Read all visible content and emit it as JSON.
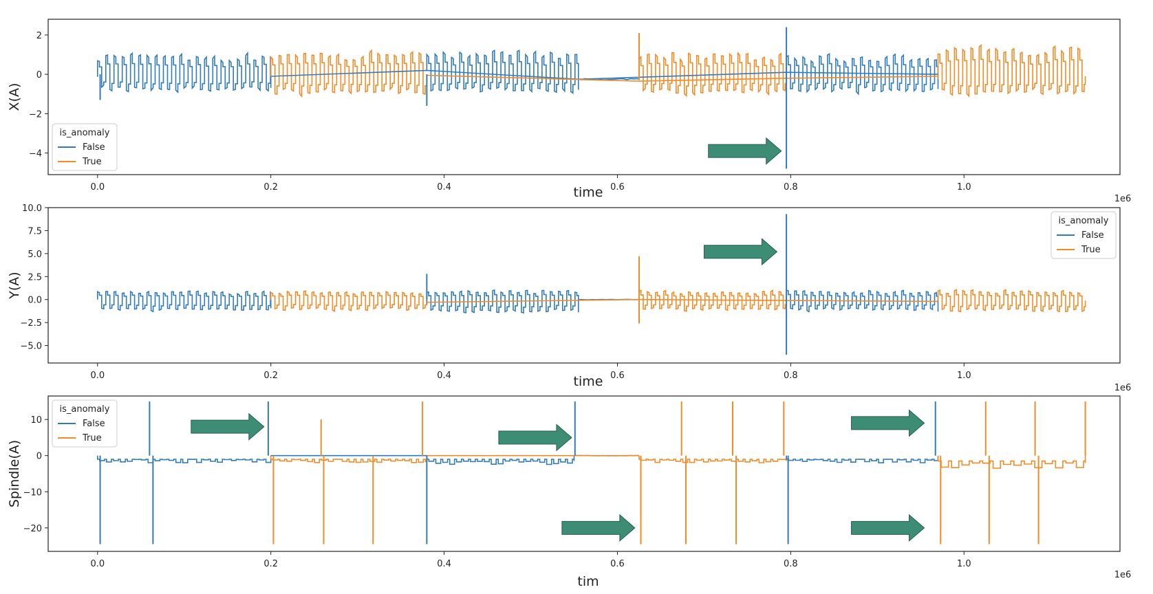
{
  "colors": {
    "false": "#2f7bbd",
    "true": "#f28a26",
    "arrow": "#3d8c74",
    "axis": "#222222",
    "text": "#222222"
  },
  "x_offset_label": "1e6",
  "chart_data": [
    {
      "type": "line",
      "id": "x",
      "ylabel": "X(A)",
      "xlabel": "time",
      "xlim": [
        -0.057,
        1.18
      ],
      "ylim": [
        -5.1,
        2.8
      ],
      "xticks": [
        0.0,
        0.2,
        0.4,
        0.6,
        0.8,
        1.0
      ],
      "xtick_labels": [
        "0.0",
        "0.2",
        "0.4",
        "0.6",
        "0.8",
        "1.0"
      ],
      "yticks": [
        2,
        0,
        -2,
        -4
      ],
      "ytick_labels": [
        "2",
        "0",
        "−2",
        "−4"
      ],
      "legend": {
        "title": "is_anomaly",
        "entries": [
          "False",
          "True"
        ],
        "placement": "lower-left"
      },
      "segments": [
        {
          "series": "False",
          "mode": "square",
          "x0": 0.0,
          "x1": 0.2,
          "hi": 1.0,
          "lo": -0.85,
          "period": 0.0095,
          "baseline": 0.0
        },
        {
          "series": "True",
          "mode": "square",
          "x0": 0.2,
          "x1": 0.38,
          "hi": 1.1,
          "lo": -1.0,
          "period": 0.0095,
          "baseline": -0.1
        },
        {
          "series": "False",
          "mode": "square",
          "x0": 0.38,
          "x1": 0.555,
          "hi": 1.2,
          "lo": -0.9,
          "period": 0.0095,
          "baseline": 0.2
        },
        {
          "series": "False",
          "mode": "flat",
          "x0": 0.555,
          "x1": 0.625,
          "level": -0.25
        },
        {
          "series": "True",
          "mode": "square",
          "x0": 0.625,
          "x1": 0.795,
          "hi": 1.1,
          "lo": -1.0,
          "period": 0.0095,
          "baseline": -0.2
        },
        {
          "series": "False",
          "mode": "square",
          "x0": 0.795,
          "x1": 0.97,
          "hi": 1.0,
          "lo": -0.9,
          "period": 0.0095,
          "baseline": 0.0
        },
        {
          "series": "True",
          "mode": "square",
          "x0": 0.97,
          "x1": 1.14,
          "hi": 1.4,
          "lo": -1.0,
          "period": 0.0095,
          "baseline": -0.1
        }
      ],
      "trends": [
        {
          "series": "False",
          "points": [
            [
              0.2,
              -0.1
            ],
            [
              0.38,
              0.2
            ],
            [
              0.555,
              -0.25
            ],
            [
              0.795,
              0.1
            ],
            [
              0.97,
              0.0
            ]
          ]
        },
        {
          "series": "True",
          "points": [
            [
              0.38,
              -0.05
            ],
            [
              0.625,
              -0.35
            ],
            [
              0.795,
              -0.2
            ],
            [
              0.97,
              -0.1
            ]
          ]
        }
      ],
      "spikes": [
        {
          "series": "True",
          "x": 0.625,
          "y": 2.1,
          "from": -0.3
        },
        {
          "series": "False",
          "x": 0.795,
          "y": 2.4,
          "from": 0.0
        },
        {
          "series": "False",
          "x": 0.795,
          "y": -4.8,
          "from": 0.0
        },
        {
          "series": "False",
          "x": 0.38,
          "y": -1.6,
          "from": 0.0
        },
        {
          "series": "False",
          "x": 0.003,
          "y": -1.3,
          "from": 0.0
        }
      ],
      "arrows": [
        {
          "x": 0.705,
          "y": -3.9
        }
      ]
    },
    {
      "type": "line",
      "id": "y",
      "ylabel": "Y(A)",
      "xlabel": "time",
      "xlim": [
        -0.057,
        1.18
      ],
      "ylim": [
        -6.9,
        10.0
      ],
      "xticks": [
        0.0,
        0.2,
        0.4,
        0.6,
        0.8,
        1.0
      ],
      "xtick_labels": [
        "0.0",
        "0.2",
        "0.4",
        "0.6",
        "0.8",
        "1.0"
      ],
      "yticks": [
        10.0,
        7.5,
        5.0,
        2.5,
        0.0,
        -2.5,
        -5.0
      ],
      "ytick_labels": [
        "10.0",
        "7.5",
        "5.0",
        "2.5",
        "0.0",
        "−2.5",
        "−5.0"
      ],
      "legend": {
        "title": "is_anomaly",
        "entries": [
          "False",
          "True"
        ],
        "placement": "upper-right"
      },
      "segments": [
        {
          "series": "False",
          "mode": "square",
          "x0": 0.0,
          "x1": 0.2,
          "hi": 0.9,
          "lo": -1.2,
          "period": 0.0095,
          "baseline": 0.0
        },
        {
          "series": "True",
          "mode": "square",
          "x0": 0.2,
          "x1": 0.38,
          "hi": 0.9,
          "lo": -1.2,
          "period": 0.0095,
          "baseline": 0.0
        },
        {
          "series": "False",
          "mode": "square",
          "x0": 0.38,
          "x1": 0.555,
          "hi": 1.0,
          "lo": -1.4,
          "period": 0.0095,
          "baseline": -0.5
        },
        {
          "series": "False",
          "mode": "flat",
          "x0": 0.555,
          "x1": 0.625,
          "level": 0.0
        },
        {
          "series": "True",
          "mode": "square",
          "x0": 0.625,
          "x1": 0.795,
          "hi": 0.9,
          "lo": -1.2,
          "period": 0.0095,
          "baseline": 0.0
        },
        {
          "series": "False",
          "mode": "square",
          "x0": 0.795,
          "x1": 0.97,
          "hi": 1.0,
          "lo": -1.2,
          "period": 0.0095,
          "baseline": -0.3
        },
        {
          "series": "True",
          "mode": "square",
          "x0": 0.97,
          "x1": 1.14,
          "hi": 1.0,
          "lo": -1.3,
          "period": 0.0095,
          "baseline": -0.1
        }
      ],
      "trends": [
        {
          "series": "True",
          "points": [
            [
              0.38,
              -0.3
            ],
            [
              0.625,
              0.0
            ],
            [
              0.97,
              -0.2
            ]
          ]
        }
      ],
      "spikes": [
        {
          "series": "False",
          "x": 0.38,
          "y": 2.8,
          "from": 0.0
        },
        {
          "series": "True",
          "x": 0.625,
          "y": 4.7,
          "from": 0.0
        },
        {
          "series": "True",
          "x": 0.625,
          "y": -2.6,
          "from": 0.0
        },
        {
          "series": "False",
          "x": 0.795,
          "y": 9.3,
          "from": 0.0
        },
        {
          "series": "False",
          "x": 0.795,
          "y": -6.0,
          "from": 0.0
        }
      ],
      "arrows": [
        {
          "x": 0.7,
          "y": 5.2
        }
      ]
    },
    {
      "type": "line",
      "id": "spindle",
      "ylabel": "Spindle(A)",
      "xlabel": "tim",
      "xlim": [
        -0.057,
        1.18
      ],
      "ylim": [
        -26.5,
        16.5
      ],
      "xticks": [
        0.0,
        0.2,
        0.4,
        0.6,
        0.8,
        1.0
      ],
      "xtick_labels": [
        "0.0",
        "0.2",
        "0.4",
        "0.6",
        "0.8",
        "1.0"
      ],
      "yticks": [
        10,
        0,
        -10,
        -20
      ],
      "ytick_labels": [
        "10",
        "0",
        "−10",
        "−20"
      ],
      "legend": {
        "title": "is_anomaly",
        "entries": [
          "False",
          "True"
        ],
        "placement": "upper-left"
      },
      "segments": [
        {
          "series": "False",
          "mode": "steps",
          "x0": 0.0,
          "x1": 0.2,
          "hi": 0.0,
          "lo": -2.0,
          "period": 0.008,
          "baseline": -1.0
        },
        {
          "series": "True",
          "mode": "steps",
          "x0": 0.2,
          "x1": 0.38,
          "hi": 0.0,
          "lo": -2.0,
          "period": 0.008,
          "baseline": -1.0
        },
        {
          "series": "False",
          "mode": "steps",
          "x0": 0.38,
          "x1": 0.55,
          "hi": 0.0,
          "lo": -2.5,
          "period": 0.008,
          "baseline": -1.0
        },
        {
          "series": "False",
          "mode": "flat",
          "x0": 0.55,
          "x1": 0.625,
          "level": 0.0
        },
        {
          "series": "True",
          "mode": "steps",
          "x0": 0.625,
          "x1": 0.795,
          "hi": 0.0,
          "lo": -2.0,
          "period": 0.008,
          "baseline": -1.0
        },
        {
          "series": "False",
          "mode": "steps",
          "x0": 0.795,
          "x1": 0.97,
          "hi": 0.0,
          "lo": -2.0,
          "period": 0.008,
          "baseline": -1.0
        },
        {
          "series": "True",
          "mode": "steps",
          "x0": 0.97,
          "x1": 1.14,
          "hi": 0.0,
          "lo": -3.5,
          "period": 0.012,
          "baseline": -1.5
        }
      ],
      "trends": [
        {
          "series": "True",
          "points": [
            [
              0.38,
              0.0
            ],
            [
              0.625,
              0.0
            ]
          ]
        },
        {
          "series": "False",
          "points": [
            [
              0.2,
              0.0
            ],
            [
              0.38,
              0.0
            ]
          ]
        }
      ],
      "spikes": [
        {
          "series": "False",
          "x": 0.003,
          "y": -24.5,
          "from": 0.0
        },
        {
          "series": "False",
          "x": 0.06,
          "y": 15.0,
          "from": 0.0
        },
        {
          "series": "False",
          "x": 0.064,
          "y": -24.5,
          "from": 0.0
        },
        {
          "series": "False",
          "x": 0.197,
          "y": 15.0,
          "from": 0.0
        },
        {
          "series": "True",
          "x": 0.203,
          "y": -24.5,
          "from": 0.0
        },
        {
          "series": "True",
          "x": 0.258,
          "y": 10.0,
          "from": 0.0
        },
        {
          "series": "True",
          "x": 0.261,
          "y": -24.5,
          "from": 0.0
        },
        {
          "series": "True",
          "x": 0.318,
          "y": -24.5,
          "from": 0.0
        },
        {
          "series": "True",
          "x": 0.375,
          "y": 15.0,
          "from": 0.0
        },
        {
          "series": "False",
          "x": 0.38,
          "y": -24.5,
          "from": 0.0
        },
        {
          "series": "False",
          "x": 0.551,
          "y": 15.0,
          "from": 0.0
        },
        {
          "series": "True",
          "x": 0.627,
          "y": -24.5,
          "from": 0.0
        },
        {
          "series": "True",
          "x": 0.674,
          "y": 15.0,
          "from": 0.0
        },
        {
          "series": "True",
          "x": 0.679,
          "y": -24.5,
          "from": 0.0
        },
        {
          "series": "True",
          "x": 0.733,
          "y": 15.0,
          "from": 0.0
        },
        {
          "series": "True",
          "x": 0.737,
          "y": -24.5,
          "from": 0.0
        },
        {
          "series": "True",
          "x": 0.792,
          "y": 15.0,
          "from": 0.0
        },
        {
          "series": "False",
          "x": 0.797,
          "y": -24.5,
          "from": 0.0
        },
        {
          "series": "False",
          "x": 0.967,
          "y": 15.0,
          "from": 0.0
        },
        {
          "series": "True",
          "x": 0.973,
          "y": -24.5,
          "from": 0.0
        },
        {
          "series": "True",
          "x": 1.025,
          "y": 15.0,
          "from": 0.0
        },
        {
          "series": "True",
          "x": 1.029,
          "y": -24.5,
          "from": 0.0
        },
        {
          "series": "True",
          "x": 1.082,
          "y": 15.0,
          "from": 0.0
        },
        {
          "series": "True",
          "x": 1.086,
          "y": -24.5,
          "from": 0.0
        },
        {
          "series": "True",
          "x": 1.14,
          "y": 15.0,
          "from": 0.0
        }
      ],
      "arrows": [
        {
          "x": 0.108,
          "y": 8.0
        },
        {
          "x": 0.463,
          "y": 5.0
        },
        {
          "x": 0.536,
          "y": -20.0
        },
        {
          "x": 0.87,
          "y": 9.0
        },
        {
          "x": 0.87,
          "y": -20.0
        }
      ]
    }
  ]
}
